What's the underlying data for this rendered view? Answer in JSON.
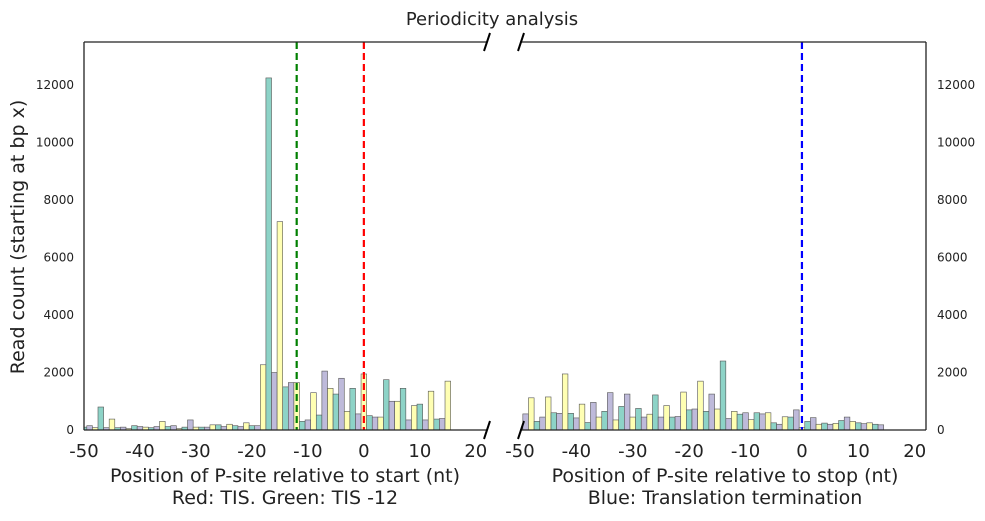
{
  "chart_data": {
    "type": "bar",
    "title": "Periodicity analysis",
    "ylabel": "Read count (starting at bp x)",
    "ylim": [
      0,
      13500
    ],
    "yticks": [
      0,
      2000,
      4000,
      6000,
      8000,
      10000,
      12000
    ],
    "grid": false,
    "legend": "none",
    "frame_colors": [
      "#ffffb3",
      "#8dd3c7",
      "#bebada"
    ],
    "edge_color": "#555555",
    "panels": [
      {
        "name": "start",
        "xlabel_line1": "Position of P-site relative to start (nt)",
        "xlabel_line2": "Red: TIS. Green: TIS -12",
        "xlim": [
          -50,
          22
        ],
        "xticks": [
          -50,
          -40,
          -30,
          -20,
          -10,
          0,
          10,
          20
        ],
        "x_start": -50,
        "values": [
          100,
          150,
          80,
          800,
          80,
          380,
          80,
          100,
          50,
          150,
          120,
          100,
          80,
          120,
          300,
          120,
          150,
          50,
          100,
          350,
          100,
          100,
          100,
          180,
          180,
          120,
          200,
          150,
          120,
          250,
          150,
          150,
          2270,
          12250,
          2000,
          7250,
          1500,
          1650,
          1650,
          300,
          350,
          1300,
          520,
          2050,
          1450,
          1250,
          1800,
          650,
          1450,
          560,
          1950,
          500,
          450,
          450,
          1750,
          1000,
          1000,
          1450,
          350,
          850,
          900,
          350,
          1350,
          380,
          400,
          1700
        ],
        "markers": [
          {
            "x": 0,
            "color": "#ff0000",
            "label": "TIS"
          },
          {
            "x": -12,
            "color": "#008000",
            "label": "TIS -12"
          }
        ]
      },
      {
        "name": "stop",
        "xlabel_line1": "Position of P-site relative to stop (nt)",
        "xlabel_line2": "Blue: Translation termination",
        "xlim": [
          -50,
          22
        ],
        "xticks": [
          -50,
          -40,
          -30,
          -20,
          -10,
          0,
          10,
          20
        ],
        "x_start": -49,
        "values": [
          560,
          1120,
          300,
          450,
          1150,
          600,
          580,
          1950,
          580,
          420,
          900,
          260,
          960,
          450,
          650,
          1300,
          350,
          820,
          1250,
          450,
          750,
          450,
          550,
          1220,
          450,
          850,
          450,
          470,
          1320,
          700,
          730,
          1700,
          650,
          1250,
          730,
          2400,
          400,
          650,
          550,
          600,
          360,
          600,
          560,
          600,
          250,
          200,
          460,
          450,
          700,
          80,
          300,
          430,
          200,
          240,
          200,
          230,
          330,
          450,
          300,
          250,
          220,
          250,
          200,
          180
        ]
      }
    ],
    "stop_marker": {
      "x": 0,
      "color": "#0000ff",
      "label": "Translation termination"
    }
  }
}
